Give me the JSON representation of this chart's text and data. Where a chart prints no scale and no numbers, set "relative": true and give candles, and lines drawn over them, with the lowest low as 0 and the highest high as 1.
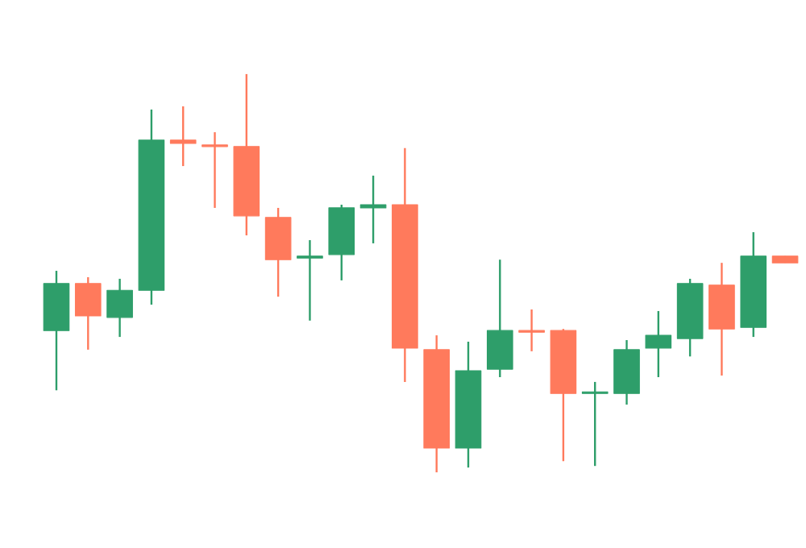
{
  "chart_data": {
    "type": "candlestick",
    "relative": true,
    "categories": [
      null,
      null,
      null,
      null,
      null,
      null,
      null,
      null,
      null,
      null,
      null,
      null,
      null,
      null,
      null,
      null,
      null,
      null,
      null,
      null,
      null,
      null,
      null,
      null
    ],
    "ohlc": [
      [
        0.356,
        0.506,
        0.206,
        0.474
      ],
      [
        0.474,
        0.49,
        0.308,
        0.393
      ],
      [
        0.389,
        0.486,
        0.34,
        0.457
      ],
      [
        0.457,
        0.911,
        0.421,
        0.834
      ],
      [
        0.834,
        0.919,
        0.769,
        0.826
      ],
      [
        0.822,
        0.854,
        0.664,
        0.818
      ],
      [
        0.818,
        1.0,
        0.595,
        0.644
      ],
      [
        0.64,
        0.664,
        0.441,
        0.534
      ],
      [
        0.538,
        0.583,
        0.381,
        0.543
      ],
      [
        0.547,
        0.672,
        0.482,
        0.664
      ],
      [
        0.664,
        0.745,
        0.575,
        0.672
      ],
      [
        0.672,
        0.814,
        0.227,
        0.312
      ],
      [
        0.308,
        0.344,
        0.0,
        0.061
      ],
      [
        0.061,
        0.328,
        0.012,
        0.255
      ],
      [
        0.259,
        0.534,
        0.239,
        0.356
      ],
      [
        0.356,
        0.409,
        0.304,
        0.352
      ],
      [
        0.356,
        0.36,
        0.028,
        0.198
      ],
      [
        0.198,
        0.227,
        0.016,
        0.202
      ],
      [
        0.198,
        0.332,
        0.17,
        0.308
      ],
      [
        0.312,
        0.405,
        0.239,
        0.344
      ],
      [
        0.336,
        0.486,
        0.291,
        0.474
      ],
      [
        0.47,
        0.526,
        0.243,
        0.36
      ],
      [
        0.364,
        0.603,
        0.34,
        0.543
      ],
      [
        0.543,
        0.543,
        0.526,
        0.526
      ]
    ],
    "colors": [
      "#2e9e6a",
      "#ff7a5c",
      "#2e9e6a",
      "#2e9e6a",
      "#ff7a5c",
      "#ff7a5c",
      "#ff7a5c",
      "#ff7a5c",
      "#2e9e6a",
      "#2e9e6a",
      "#2e9e6a",
      "#ff7a5c",
      "#ff7a5c",
      "#2e9e6a",
      "#2e9e6a",
      "#ff7a5c",
      "#ff7a5c",
      "#2e9e6a",
      "#2e9e6a",
      "#2e9e6a",
      "#2e9e6a",
      "#ff7a5c",
      "#2e9e6a",
      "#ff7a5c"
    ]
  }
}
